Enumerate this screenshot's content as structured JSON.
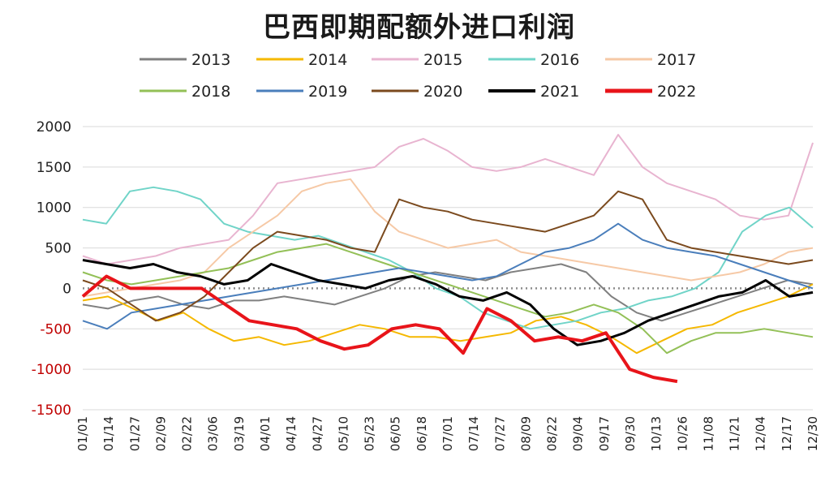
{
  "chart_data": {
    "type": "line",
    "title": "巴西即期配额外进口利润",
    "xlabel": "",
    "ylabel": "",
    "ylim": [
      -1500,
      2000
    ],
    "yticks": [
      2000,
      1500,
      1000,
      500,
      0,
      -500,
      -1000,
      -1500
    ],
    "xticks": [
      "01/01",
      "01/14",
      "01/27",
      "02/09",
      "02/22",
      "03/06",
      "03/19",
      "04/01",
      "04/14",
      "04/27",
      "05/10",
      "05/23",
      "06/05",
      "06/18",
      "07/01",
      "07/14",
      "07/27",
      "08/09",
      "08/22",
      "09/04",
      "09/17",
      "09/30",
      "10/13",
      "10/26",
      "11/08",
      "11/21",
      "12/04",
      "12/17",
      "12/30"
    ],
    "legend_position": "top",
    "grid": "horizontal",
    "zero_line": "dotted",
    "series": [
      {
        "name": "2013",
        "color": "#808080",
        "width": 2,
        "values": [
          -200,
          -250,
          -150,
          -100,
          -200,
          -250,
          -150,
          -150,
          -100,
          -150,
          -200,
          -100,
          0,
          150,
          200,
          150,
          100,
          200,
          250,
          300,
          200,
          -100,
          -300,
          -400,
          -300,
          -200,
          -100,
          0,
          100,
          50
        ]
      },
      {
        "name": "2014",
        "color": "#f5b800",
        "width": 2,
        "values": [
          -150,
          -100,
          -250,
          -400,
          -300,
          -500,
          -650,
          -600,
          -700,
          -650,
          -550,
          -450,
          -500,
          -600,
          -600,
          -650,
          -600,
          -550,
          -400,
          -350,
          -450,
          -600,
          -800,
          -650,
          -500,
          -450,
          -300,
          -200,
          -100,
          50
        ]
      },
      {
        "name": "2015",
        "color": "#e8b4d0",
        "width": 2,
        "values": [
          400,
          300,
          350,
          400,
          500,
          550,
          600,
          900,
          1300,
          1350,
          1400,
          1450,
          1500,
          1750,
          1850,
          1700,
          1500,
          1450,
          1500,
          1600,
          1500,
          1400,
          1900,
          1500,
          1300,
          1200,
          1100,
          900,
          850,
          900,
          1800
        ]
      },
      {
        "name": "2016",
        "color": "#70d4c8",
        "width": 2,
        "values": [
          850,
          800,
          1200,
          1250,
          1200,
          1100,
          800,
          700,
          650,
          600,
          650,
          550,
          450,
          350,
          200,
          0,
          -100,
          -300,
          -400,
          -500,
          -450,
          -400,
          -300,
          -250,
          -150,
          -100,
          0,
          200,
          700,
          900,
          1000,
          750
        ]
      },
      {
        "name": "2017",
        "color": "#f6c9a6",
        "width": 2,
        "values": [
          -100,
          -50,
          0,
          50,
          100,
          200,
          500,
          700,
          900,
          1200,
          1300,
          1350,
          950,
          700,
          600,
          500,
          550,
          600,
          450,
          400,
          350,
          300,
          250,
          200,
          150,
          100,
          150,
          200,
          300,
          450,
          500
        ]
      },
      {
        "name": "2018",
        "color": "#93c057",
        "width": 2,
        "values": [
          200,
          100,
          50,
          100,
          150,
          200,
          250,
          350,
          450,
          500,
          550,
          450,
          350,
          250,
          150,
          50,
          -50,
          -150,
          -250,
          -350,
          -300,
          -200,
          -300,
          -500,
          -800,
          -650,
          -550,
          -550,
          -500,
          -550,
          -600
        ]
      },
      {
        "name": "2019",
        "color": "#4a7ebb",
        "width": 2,
        "values": [
          -400,
          -500,
          -300,
          -250,
          -200,
          -150,
          -100,
          -50,
          0,
          50,
          100,
          150,
          200,
          250,
          200,
          150,
          100,
          150,
          300,
          450,
          500,
          600,
          800,
          600,
          500,
          450,
          400,
          300,
          200,
          100,
          0
        ]
      },
      {
        "name": "2020",
        "color": "#7b4a1e",
        "width": 2,
        "values": [
          100,
          0,
          -200,
          -400,
          -300,
          -100,
          200,
          500,
          700,
          650,
          600,
          500,
          450,
          1100,
          1000,
          950,
          850,
          800,
          750,
          700,
          800,
          900,
          1200,
          1100,
          600,
          500,
          450,
          400,
          350,
          300,
          350
        ]
      },
      {
        "name": "2021",
        "color": "#000000",
        "width": 3,
        "values": [
          350,
          300,
          250,
          300,
          200,
          150,
          50,
          100,
          300,
          200,
          100,
          50,
          0,
          100,
          150,
          50,
          -100,
          -150,
          -50,
          -200,
          -500,
          -700,
          -650,
          -550,
          -400,
          -300,
          -200,
          -100,
          -50,
          100,
          -100,
          -50
        ]
      },
      {
        "name": "2022",
        "color": "#e8141a",
        "width": 4,
        "values": [
          -100,
          150,
          0,
          0,
          0,
          0,
          -200,
          -400,
          -450,
          -500,
          -650,
          -750,
          -700,
          -500,
          -450,
          -500,
          -800,
          -250,
          -400,
          -650,
          -600,
          -650,
          -550,
          -1000,
          -1100,
          -1150
        ]
      }
    ]
  }
}
